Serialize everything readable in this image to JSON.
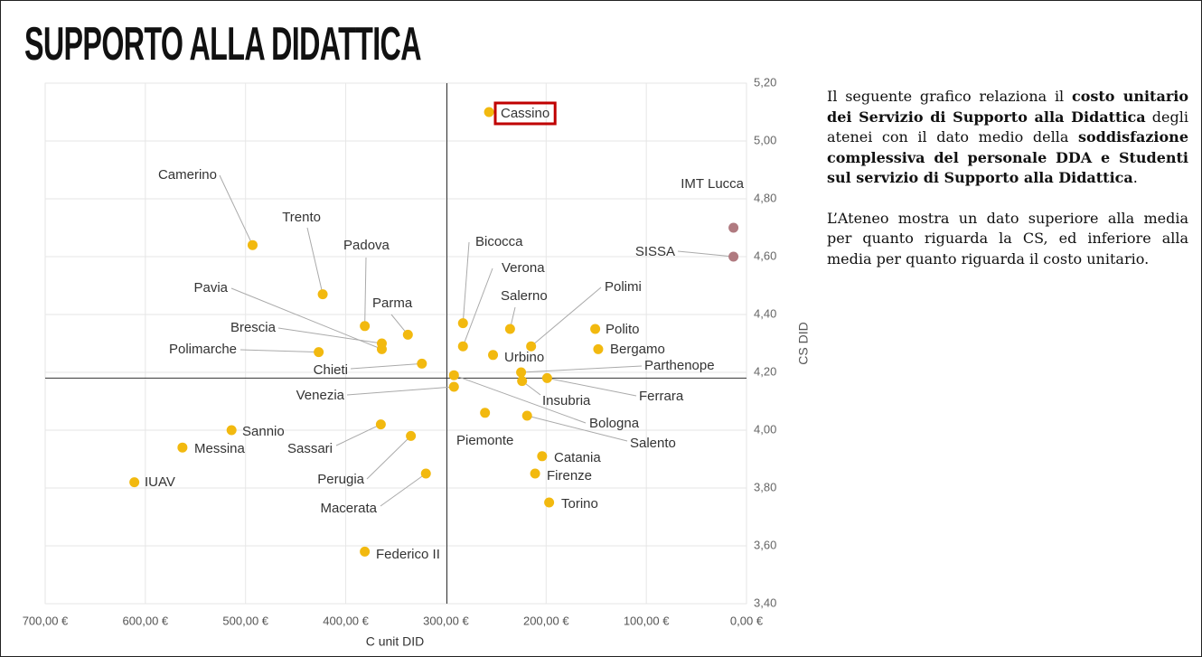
{
  "title": "SUPPORTO ALLA DIDATTICA",
  "chart_data": {
    "type": "scatter",
    "x_label": "C unit DID",
    "y_label": "CS DID",
    "labels": [
      "Cassino",
      "IMT Lucca",
      "SISSA",
      "Camerino",
      "Trento",
      "Padova",
      "Bicocca",
      "Verona",
      "Pavia",
      "Brescia",
      "Parma",
      "Salerno",
      "Polimi",
      "Polito",
      "Bergamo",
      "Polimarche",
      "Urbino",
      "Chieti",
      "Parthenope",
      "Bologna",
      "Venezia",
      "Insubria",
      "Ferrara",
      "Piemonte",
      "Salento",
      "Sannio",
      "Sassari",
      "Messina",
      "Perugia",
      "Catania",
      "IUAV",
      "Macerata",
      "Firenze",
      "Torino",
      "Federico II"
    ],
    "x": [
      257,
      13,
      13,
      493,
      423,
      381,
      283,
      283,
      364,
      364,
      338,
      236,
      215,
      151,
      148,
      427,
      253,
      324,
      225,
      292,
      292,
      224,
      199,
      261,
      219,
      514,
      365,
      563,
      335,
      204,
      611,
      320,
      211,
      197,
      381
    ],
    "y": [
      5.1,
      4.7,
      4.6,
      4.64,
      4.47,
      4.36,
      4.37,
      4.29,
      4.28,
      4.3,
      4.33,
      4.35,
      4.29,
      4.35,
      4.28,
      4.27,
      4.26,
      4.23,
      4.2,
      4.19,
      4.15,
      4.17,
      4.18,
      4.06,
      4.05,
      4.0,
      4.02,
      3.94,
      3.98,
      3.91,
      3.82,
      3.85,
      3.85,
      3.75,
      3.58
    ],
    "colors": [
      "#f2b90f",
      "#b07a80",
      "#b07a80",
      "#f2b90f",
      "#f2b90f",
      "#f2b90f",
      "#f2b90f",
      "#f2b90f",
      "#f2b90f",
      "#f2b90f",
      "#f2b90f",
      "#f2b90f",
      "#f2b90f",
      "#f2b90f",
      "#f2b90f",
      "#f2b90f",
      "#f2b90f",
      "#f2b90f",
      "#f2b90f",
      "#f2b90f",
      "#f2b90f",
      "#f2b90f",
      "#f2b90f",
      "#f2b90f",
      "#f2b90f",
      "#f2b90f",
      "#f2b90f",
      "#f2b90f",
      "#f2b90f",
      "#f2b90f",
      "#f2b90f",
      "#f2b90f",
      "#f2b90f",
      "#f2b90f",
      "#f2b90f"
    ],
    "xlim": [
      700,
      0
    ],
    "ylim": [
      3.4,
      5.2
    ],
    "xticks": [
      {
        "value": 700,
        "label": "700,00 €"
      },
      {
        "value": 600,
        "label": "600,00 €"
      },
      {
        "value": 500,
        "label": "500,00 €"
      },
      {
        "value": 400,
        "label": "400,00 €"
      },
      {
        "value": 300,
        "label": "300,00 €"
      },
      {
        "value": 200,
        "label": "200,00 €"
      },
      {
        "value": 100,
        "label": "100,00 €"
      },
      {
        "value": 0,
        "label": "0,00 €"
      }
    ],
    "yticks": [
      {
        "value": 3.4,
        "label": "3,40"
      },
      {
        "value": 3.6,
        "label": "3,60"
      },
      {
        "value": 3.8,
        "label": "3,80"
      },
      {
        "value": 4.0,
        "label": "4,00"
      },
      {
        "value": 4.2,
        "label": "4,20"
      },
      {
        "value": 4.4,
        "label": "4,40"
      },
      {
        "value": 4.6,
        "label": "4,60"
      },
      {
        "value": 4.8,
        "label": "4,80"
      },
      {
        "value": 5.0,
        "label": "5,00"
      },
      {
        "value": 5.2,
        "label": "5,20"
      }
    ],
    "reference_x": 299,
    "reference_y": 4.18,
    "grid": true
  },
  "text": {
    "paragraphs": [
      [
        {
          "t": "Il seguente grafico relaziona il ",
          "bold": false
        },
        {
          "t": "costo unitario dei Servizio di Supporto alla Didattica",
          "bold": true
        },
        {
          "t": " degli atenei con il dato medio della ",
          "bold": false
        },
        {
          "t": "soddisfazione complessiva del personale DDA e Studenti sul servizio di Supporto alla Didattica",
          "bold": true
        },
        {
          "t": ".",
          "bold": false
        }
      ],
      [
        {
          "t": "L’Ateneo mostra un dato superiore alla media per quanto riguarda la CS, ed inferiore alla media per quanto riguarda il costo unitario.",
          "bold": false
        }
      ]
    ]
  }
}
